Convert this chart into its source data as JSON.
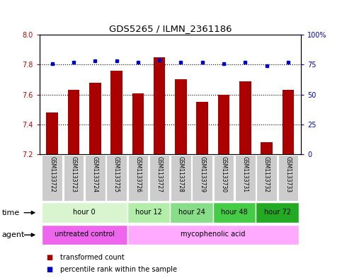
{
  "title": "GDS5265 / ILMN_2361186",
  "samples": [
    "GSM1133722",
    "GSM1133723",
    "GSM1133724",
    "GSM1133725",
    "GSM1133726",
    "GSM1133727",
    "GSM1133728",
    "GSM1133729",
    "GSM1133730",
    "GSM1133731",
    "GSM1133732",
    "GSM1133733"
  ],
  "bar_values": [
    7.48,
    7.63,
    7.68,
    7.76,
    7.61,
    7.85,
    7.7,
    7.55,
    7.6,
    7.69,
    7.28,
    7.63
  ],
  "percentile_values": [
    76,
    77,
    78,
    78,
    77,
    79,
    77,
    77,
    76,
    77,
    74,
    77
  ],
  "bar_color": "#aa0000",
  "dot_color": "#0000cc",
  "ylim_left": [
    7.2,
    8.0
  ],
  "ylim_right": [
    0,
    100
  ],
  "yticks_left": [
    7.2,
    7.4,
    7.6,
    7.8,
    8.0
  ],
  "yticks_right": [
    0,
    25,
    50,
    75,
    100
  ],
  "ytick_labels_right": [
    "0",
    "25",
    "50",
    "75",
    "100%"
  ],
  "hlines": [
    7.4,
    7.6,
    7.8
  ],
  "time_groups": [
    {
      "label": "hour 0",
      "start": 0,
      "end": 3
    },
    {
      "label": "hour 12",
      "start": 4,
      "end": 5
    },
    {
      "label": "hour 24",
      "start": 6,
      "end": 7
    },
    {
      "label": "hour 48",
      "start": 8,
      "end": 9
    },
    {
      "label": "hour 72",
      "start": 10,
      "end": 11
    }
  ],
  "time_colors": [
    "#d8f5d0",
    "#b2eeaa",
    "#88dd88",
    "#44cc44",
    "#22aa22"
  ],
  "agent_groups": [
    {
      "label": "untreated control",
      "start": 0,
      "end": 3
    },
    {
      "label": "mycophenolic acid",
      "start": 4,
      "end": 11
    }
  ],
  "agent_colors": [
    "#ee66ee",
    "#ffaaff"
  ],
  "legend_items": [
    {
      "label": "transformed count",
      "color": "#aa0000"
    },
    {
      "label": "percentile rank within the sample",
      "color": "#0000cc"
    }
  ],
  "bar_width": 0.55,
  "background_color": "#ffffff",
  "sample_box_color": "#cccccc",
  "ylabel_left_color": "#cc0000",
  "ylabel_right_color": "#0000cc"
}
